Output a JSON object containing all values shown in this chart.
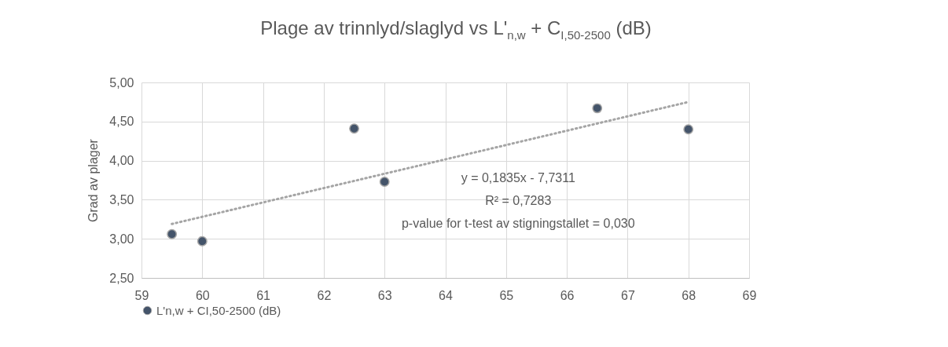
{
  "chart_data": {
    "type": "scatter",
    "title": "Plage av trinnlyd/slaglyd vs L'$_{n,w}$ + C$_{I,50-2500}$ (dB)",
    "ylabel": "Grad av plager",
    "x": [
      59.5,
      60,
      62.5,
      63,
      66.5,
      68
    ],
    "series": [
      {
        "name": "L'n,w + CI,50-2500 (dB)",
        "type": "scatter",
        "color": "#44546a",
        "marker": "circle",
        "values": [
          3.06,
          2.97,
          4.41,
          3.73,
          4.67,
          4.4
        ]
      },
      {
        "type": "line",
        "color": "#a5a5a5",
        "line_style": "dotted",
        "marker": "none",
        "x": [
          59.5,
          68
        ],
        "values": [
          3.19,
          4.75
        ]
      }
    ],
    "xlim": [
      59,
      69
    ],
    "xticks": [
      59,
      60,
      61,
      62,
      63,
      64,
      65,
      66,
      67,
      68,
      69
    ],
    "ylim": [
      2.5,
      5
    ],
    "yticks": [
      {
        "value": 2.5,
        "label": "2,50"
      },
      {
        "value": 3,
        "label": "3,00"
      },
      {
        "value": 3.5,
        "label": "3,50"
      },
      {
        "value": 4,
        "label": "4,00"
      },
      {
        "value": 4.5,
        "label": "4,50"
      },
      {
        "value": 5,
        "label": "5,00"
      }
    ],
    "grid": true,
    "legend": "bottom",
    "annotations": [
      "y = 0,1835x - 7,7311",
      "R² = 0,7283",
      "p-value for t-test av stigningstallet = 0,030"
    ]
  }
}
